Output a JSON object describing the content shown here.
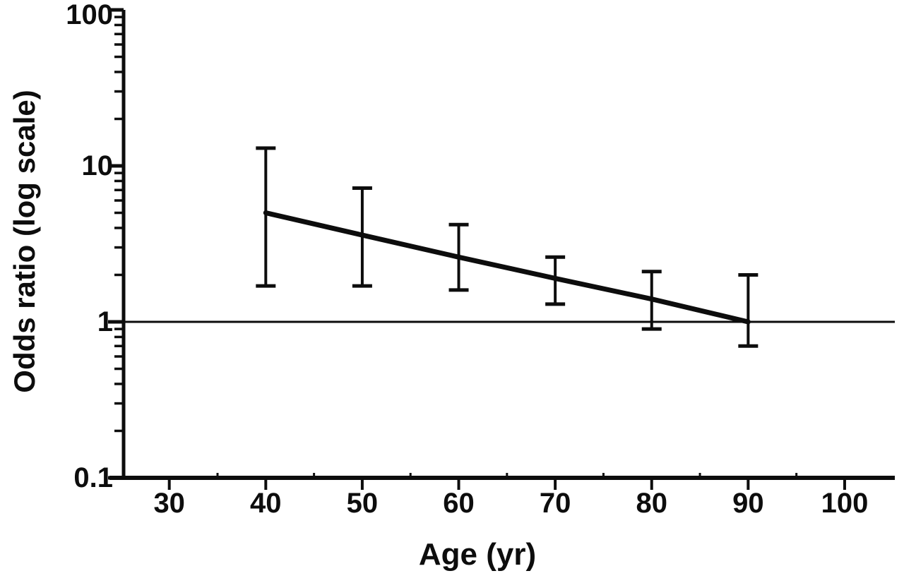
{
  "figure": {
    "background": "#ffffff",
    "ink_color": "#0d0d0d",
    "description": "Line plot of odds ratio (log scale) versus age with T-capped confidence-interval error bars and a horizontal reference line at odds ratio 1"
  },
  "chart_data": {
    "type": "line",
    "title": "",
    "xlabel": "Age (yr)",
    "ylabel": "Odds ratio (log scale)",
    "y_scale": "log",
    "x_scale": "linear",
    "ylim": [
      0.1,
      100
    ],
    "xlim": [
      23.8,
      105.2
    ],
    "x_ticks": [
      30,
      40,
      50,
      60,
      70,
      80,
      90,
      100
    ],
    "x_tick_labels": [
      "30",
      "40",
      "50",
      "60",
      "70",
      "80",
      "90",
      "100"
    ],
    "x_minor_ticks": [
      35,
      45,
      55,
      65,
      75,
      85,
      95
    ],
    "y_ticks": [
      100,
      10,
      1,
      0.1
    ],
    "y_tick_labels": [
      "100",
      "10",
      "1",
      "0.1"
    ],
    "y_minor_tick_decades": [
      -1,
      0,
      1
    ],
    "reference_line_y": 1,
    "grid": false,
    "legend": false,
    "series": [
      {
        "name": "Odds ratio with confidence interval",
        "x": [
          40,
          50,
          60,
          70,
          80,
          90
        ],
        "y": [
          5.0,
          3.6,
          2.6,
          1.9,
          1.4,
          1.0
        ],
        "ci_low": [
          1.7,
          1.7,
          1.6,
          1.3,
          0.9,
          0.7
        ],
        "ci_high": [
          13.0,
          7.2,
          4.2,
          2.6,
          2.1,
          2.0
        ],
        "marker": "none",
        "line_style": "solid",
        "error_bar_style": "T-capped vertical bars"
      }
    ]
  }
}
